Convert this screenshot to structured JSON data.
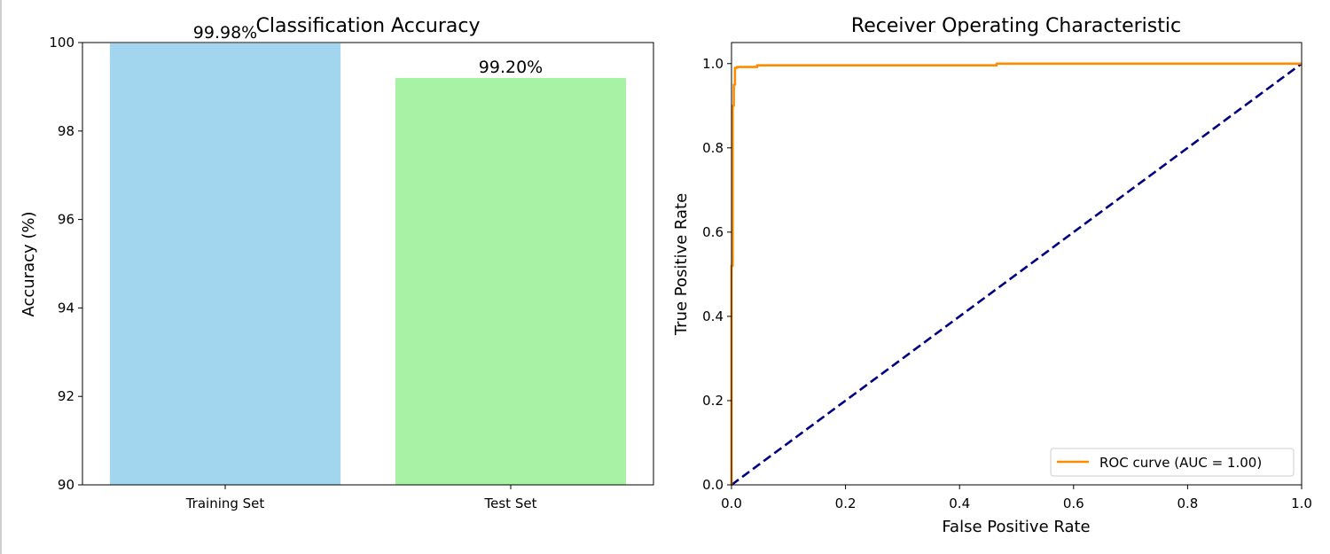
{
  "chart_data": [
    {
      "type": "bar",
      "title": "Classification Accuracy",
      "xlabel": "",
      "ylabel": "Accuracy (%)",
      "categories": [
        "Training Set",
        "Test Set"
      ],
      "values": [
        99.98,
        99.2
      ],
      "data_labels": [
        "99.98%",
        "99.20%"
      ],
      "colors": [
        "#a1d6ee",
        "#a8f2a5"
      ],
      "ylim": [
        90,
        100
      ],
      "yticks": [
        90,
        92,
        94,
        96,
        98,
        100
      ],
      "ytick_labels": [
        "90",
        "92",
        "94",
        "96",
        "98",
        "100"
      ],
      "grid": false
    },
    {
      "type": "line",
      "title": "Receiver Operating Characteristic",
      "xlabel": "False Positive Rate",
      "ylabel": "True Positive Rate",
      "xlim": [
        0.0,
        1.0
      ],
      "ylim": [
        0.0,
        1.05
      ],
      "xticks": [
        0.0,
        0.2,
        0.4,
        0.6,
        0.8,
        1.0
      ],
      "xtick_labels": [
        "0.0",
        "0.2",
        "0.4",
        "0.6",
        "0.8",
        "1.0"
      ],
      "yticks": [
        0.0,
        0.2,
        0.4,
        0.6,
        0.8,
        1.0
      ],
      "ytick_labels": [
        "0.0",
        "0.2",
        "0.4",
        "0.6",
        "0.8",
        "1.0"
      ],
      "grid": false,
      "legend": "lower-right",
      "series": [
        {
          "name": "ROC curve (AUC = 1.00)",
          "color": "#ff8c00",
          "style": "solid",
          "x": [
            0.0,
            0.0,
            0.002,
            0.002,
            0.004,
            0.004,
            0.006,
            0.006,
            0.01,
            0.01,
            0.045,
            0.045,
            0.465,
            0.465,
            1.0
          ],
          "y": [
            0.0,
            0.52,
            0.52,
            0.9,
            0.9,
            0.95,
            0.95,
            0.99,
            0.99,
            0.992,
            0.992,
            0.996,
            0.996,
            1.0,
            1.0
          ]
        },
        {
          "name": "",
          "color": "#000080",
          "style": "dashed",
          "x": [
            0.0,
            1.0
          ],
          "y": [
            0.0,
            1.0
          ]
        }
      ]
    }
  ]
}
